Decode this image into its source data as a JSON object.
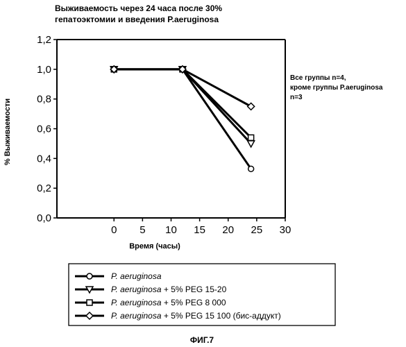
{
  "chart_data": {
    "type": "line",
    "title": [
      "Выживаемость через 24 часа после 30%",
      "гепатоэктомии и введения P.aeruginosa"
    ],
    "xlabel": "Время (часы)",
    "ylabel": "% Выживаемости",
    "xlim": [
      -10,
      30
    ],
    "ylim": [
      0,
      1.2
    ],
    "xticks": [
      "0",
      "5",
      "10",
      "15",
      "20",
      "25",
      "30"
    ],
    "yticks": [
      "0,0",
      "0,2",
      "0,4",
      "0,6",
      "0,8",
      "1,0",
      "1,2"
    ],
    "x": [
      0,
      12,
      24
    ],
    "series": [
      {
        "name_italic": "P. aeruginosa",
        "name_rest": "",
        "marker": "circle",
        "values": [
          1.0,
          1.0,
          0.33
        ]
      },
      {
        "name_italic": "P. aeruginosa",
        "name_rest": " + 5% PEG 15-20",
        "marker": "triangle-down",
        "values": [
          1.0,
          1.0,
          0.5
        ]
      },
      {
        "name_italic": "P. aeruginosa",
        "name_rest": " + 5% PEG 8 000",
        "marker": "square",
        "values": [
          1.0,
          1.0,
          0.54
        ]
      },
      {
        "name_italic": "P. aeruginosa",
        "name_rest": " + 5% PEG 15 100 (бис-аддукт)",
        "marker": "diamond",
        "values": [
          1.0,
          1.0,
          0.75
        ]
      }
    ],
    "annotation": [
      "Все группы n=4,",
      "кроме группы P.aeruginosa",
      "n=3"
    ],
    "legend_position": "bottom",
    "grid": false
  },
  "figure_label": "ФИГ.7",
  "colors": {
    "line": "#000000",
    "marker_fill": "#ffffff",
    "background": "#ffffff"
  }
}
